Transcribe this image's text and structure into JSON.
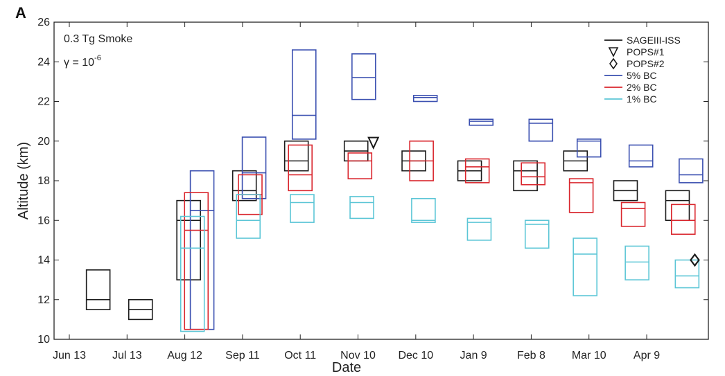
{
  "chart_data": {
    "type": "box",
    "panel_label": "A",
    "annotation_line1": "0.3 Tg Smoke",
    "annotation_gamma": "γ = 10",
    "annotation_gamma_exp": "-6",
    "xlabel": "Date",
    "ylabel": "Altitude (km)",
    "ylim": [
      10,
      26
    ],
    "yticks": [
      10,
      12,
      14,
      16,
      18,
      20,
      22,
      24,
      26
    ],
    "xlim": [
      0,
      327
    ],
    "xticks": [
      {
        "label": "Jun 13",
        "day": 0
      },
      {
        "label": "Jul 13",
        "day": 30
      },
      {
        "label": "Aug 12",
        "day": 60
      },
      {
        "label": "Sep 11",
        "day": 90
      },
      {
        "label": "Oct 11",
        "day": 120
      },
      {
        "label": "Nov 10",
        "day": 150
      },
      {
        "label": "Dec 10",
        "day": 180
      },
      {
        "label": "Jan 9",
        "day": 210
      },
      {
        "label": "Feb 8",
        "day": 240
      },
      {
        "label": "Mar 10",
        "day": 270
      },
      {
        "label": "Apr 9",
        "day": 300
      }
    ],
    "legend_position": "top-right",
    "legend": [
      {
        "label": "SAGEIII-ISS",
        "kind": "line",
        "color": "#1a1a1a"
      },
      {
        "label": "POPS#1",
        "kind": "triangle",
        "color": "#1a1a1a"
      },
      {
        "label": "POPS#2",
        "kind": "diamond",
        "color": "#1a1a1a"
      },
      {
        "label": "5% BC",
        "kind": "line",
        "color": "#3a4fb0"
      },
      {
        "label": "2% BC",
        "kind": "line",
        "color": "#d9252c"
      },
      {
        "label": "1% BC",
        "kind": "line",
        "color": "#5cc6d6"
      }
    ],
    "series": [
      {
        "name": "SAGEIII-ISS",
        "color": "#1a1a1a",
        "boxes": [
          {
            "day": 15,
            "low": 11.5,
            "median": 12.0,
            "high": 13.5
          },
          {
            "day": 37,
            "low": 11.0,
            "median": 11.5,
            "high": 12.0
          },
          {
            "day": 62,
            "low": 13.0,
            "median": 16.0,
            "high": 17.0
          },
          {
            "day": 91,
            "low": 17.0,
            "median": 17.5,
            "high": 18.5
          },
          {
            "day": 118,
            "low": 18.5,
            "median": 19.0,
            "high": 20.0
          },
          {
            "day": 149,
            "low": 19.0,
            "median": 19.5,
            "high": 20.0
          },
          {
            "day": 179,
            "low": 18.5,
            "median": 19.0,
            "high": 19.5
          },
          {
            "day": 208,
            "low": 18.0,
            "median": 18.5,
            "high": 19.0
          },
          {
            "day": 237,
            "low": 17.5,
            "median": 18.5,
            "high": 19.0
          },
          {
            "day": 263,
            "low": 18.5,
            "median": 19.0,
            "high": 19.5
          },
          {
            "day": 289,
            "low": 17.0,
            "median": 17.5,
            "high": 18.0
          },
          {
            "day": 316,
            "low": 16.0,
            "median": 17.0,
            "high": 17.5
          }
        ]
      },
      {
        "name": "5% BC",
        "color": "#3a4fb0",
        "boxes": [
          {
            "day": 69,
            "low": 10.5,
            "median": 16.5,
            "high": 18.5
          },
          {
            "day": 96,
            "low": 17.1,
            "median": 18.4,
            "high": 20.2
          },
          {
            "day": 122,
            "low": 20.1,
            "median": 21.3,
            "high": 24.6
          },
          {
            "day": 153,
            "low": 22.1,
            "median": 23.2,
            "high": 24.4
          },
          {
            "day": 185,
            "low": 22.0,
            "median": 22.2,
            "high": 22.3
          },
          {
            "day": 214,
            "low": 20.8,
            "median": 21.0,
            "high": 21.1
          },
          {
            "day": 245,
            "low": 20.0,
            "median": 20.9,
            "high": 21.1
          },
          {
            "day": 270,
            "low": 19.2,
            "median": 20.0,
            "high": 20.1
          },
          {
            "day": 297,
            "low": 18.7,
            "median": 19.0,
            "high": 19.8
          },
          {
            "day": 323,
            "low": 17.9,
            "median": 18.3,
            "high": 19.1
          }
        ]
      },
      {
        "name": "2% BC",
        "color": "#d9252c",
        "boxes": [
          {
            "day": 66,
            "low": 10.5,
            "median": 15.5,
            "high": 17.4
          },
          {
            "day": 94,
            "low": 16.3,
            "median": 17.3,
            "high": 18.3
          },
          {
            "day": 120,
            "low": 17.5,
            "median": 18.3,
            "high": 19.8
          },
          {
            "day": 151,
            "low": 18.1,
            "median": 19.0,
            "high": 19.4
          },
          {
            "day": 183,
            "low": 18.0,
            "median": 19.0,
            "high": 20.0
          },
          {
            "day": 212,
            "low": 17.9,
            "median": 18.7,
            "high": 19.1
          },
          {
            "day": 241,
            "low": 17.8,
            "median": 18.2,
            "high": 18.9
          },
          {
            "day": 266,
            "low": 16.4,
            "median": 17.9,
            "high": 18.1
          },
          {
            "day": 293,
            "low": 15.7,
            "median": 16.6,
            "high": 16.9
          },
          {
            "day": 319,
            "low": 15.3,
            "median": 16.0,
            "high": 16.8
          }
        ]
      },
      {
        "name": "1% BC",
        "color": "#5cc6d6",
        "boxes": [
          {
            "day": 64,
            "low": 10.4,
            "median": 14.6,
            "high": 16.2
          },
          {
            "day": 93,
            "low": 15.1,
            "median": 16.0,
            "high": 17.3
          },
          {
            "day": 121,
            "low": 15.9,
            "median": 16.9,
            "high": 17.3
          },
          {
            "day": 152,
            "low": 16.1,
            "median": 16.9,
            "high": 17.2
          },
          {
            "day": 184,
            "low": 15.9,
            "median": 16.0,
            "high": 17.1
          },
          {
            "day": 213,
            "low": 15.0,
            "median": 15.9,
            "high": 16.1
          },
          {
            "day": 243,
            "low": 14.6,
            "median": 15.8,
            "high": 16.0
          },
          {
            "day": 268,
            "low": 12.2,
            "median": 14.3,
            "high": 15.1
          },
          {
            "day": 295,
            "low": 13.0,
            "median": 13.9,
            "high": 14.7
          },
          {
            "day": 321,
            "low": 12.6,
            "median": 13.2,
            "high": 14.0
          }
        ]
      }
    ],
    "markers": [
      {
        "name": "POPS#1",
        "shape": "triangle",
        "day": 158,
        "altitude": 19.9,
        "color": "#1a1a1a"
      },
      {
        "name": "POPS#2",
        "shape": "diamond",
        "day": 325,
        "altitude": 14.0,
        "color": "#1a1a1a"
      }
    ]
  }
}
